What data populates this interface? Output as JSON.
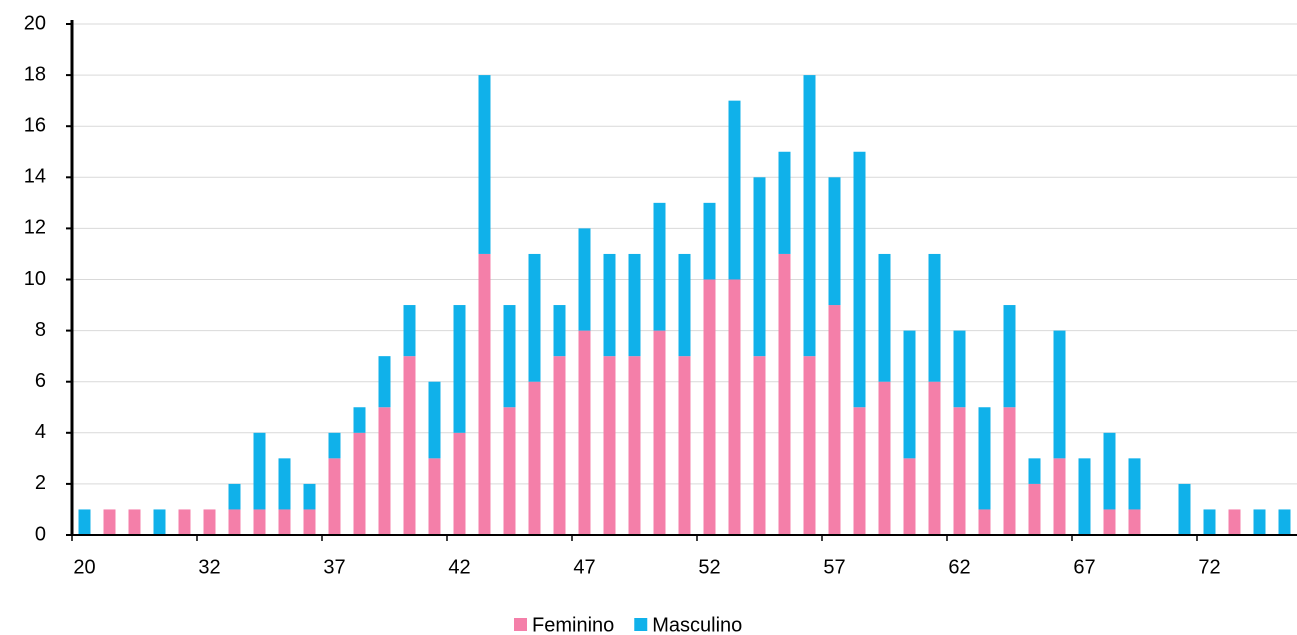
{
  "chart_data": {
    "type": "stacked-bar",
    "categories": [
      "20",
      null,
      null,
      null,
      null,
      "32",
      null,
      null,
      null,
      null,
      "37",
      null,
      null,
      null,
      null,
      "42",
      null,
      null,
      null,
      null,
      "47",
      null,
      null,
      null,
      null,
      "52",
      null,
      null,
      null,
      null,
      "57",
      null,
      null,
      null,
      null,
      "62",
      null,
      null,
      null,
      null,
      "67",
      null,
      null,
      null,
      null,
      "72",
      null,
      null,
      null
    ],
    "series": [
      {
        "name": "Feminino",
        "color": "#f47fa9",
        "values": [
          0,
          1,
          1,
          0,
          1,
          1,
          1,
          1,
          1,
          1,
          3,
          4,
          5,
          7,
          3,
          4,
          11,
          5,
          6,
          7,
          8,
          7,
          7,
          8,
          7,
          10,
          10,
          7,
          11,
          7,
          9,
          5,
          6,
          3,
          6,
          5,
          1,
          5,
          2,
          3,
          0,
          1,
          1,
          0,
          0,
          0,
          1,
          0,
          0
        ]
      },
      {
        "name": "Masculino",
        "color": "#10b1ea",
        "values": [
          1,
          0,
          0,
          1,
          0,
          0,
          1,
          3,
          2,
          1,
          1,
          1,
          2,
          2,
          3,
          5,
          7,
          4,
          5,
          2,
          4,
          4,
          4,
          5,
          4,
          3,
          7,
          7,
          4,
          11,
          5,
          10,
          5,
          5,
          5,
          3,
          4,
          4,
          1,
          5,
          3,
          3,
          2,
          0,
          2,
          1,
          0,
          1,
          1
        ]
      }
    ],
    "ylim": [
      0,
      20
    ],
    "yticks": [
      0,
      2,
      4,
      6,
      8,
      10,
      12,
      14,
      16,
      18,
      20
    ],
    "grid": true,
    "legend": "bottom"
  }
}
